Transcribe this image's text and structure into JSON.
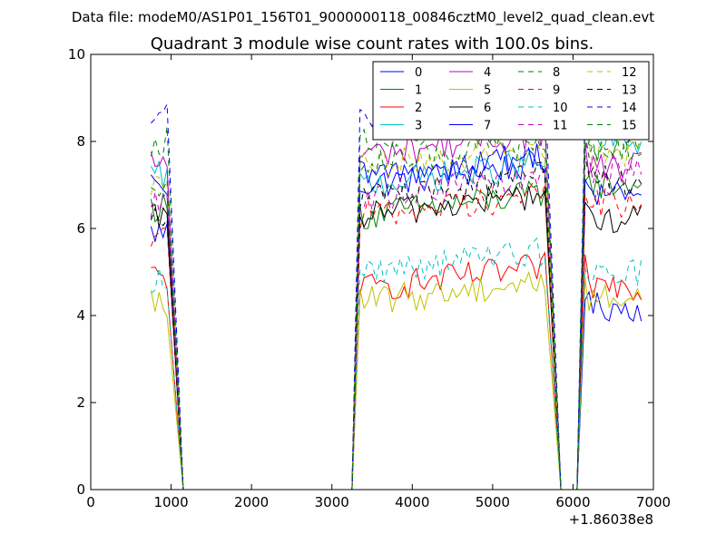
{
  "figure": {
    "suptitle": "Data file: modeM0/AS1P01_156T01_9000000118_00846cztM0_level2_quad_clean.evt"
  },
  "chart_data": {
    "type": "line",
    "title": "Quadrant 3 module wise count rates with 100.0s bins.",
    "xlabel": "",
    "ylabel": "",
    "x_offset_label": "+1.86038e8",
    "xlim": [
      0,
      7000
    ],
    "ylim": [
      0,
      10
    ],
    "xticks": [
      0,
      1000,
      2000,
      3000,
      4000,
      5000,
      6000,
      7000
    ],
    "yticks": [
      0,
      2,
      4,
      6,
      8,
      10
    ],
    "xtick_labels": [
      "0",
      "1000",
      "2000",
      "3000",
      "4000",
      "5000",
      "6000",
      "7000"
    ],
    "ytick_labels": [
      "0",
      "2",
      "4",
      "6",
      "8",
      "10"
    ],
    "grid": false,
    "legend_position": "top-right",
    "legend_columns": 4,
    "segments": [
      {
        "start": 750,
        "end": 950
      },
      {
        "start": 3350,
        "end": 5650
      },
      {
        "start": 6150,
        "end": 6850
      }
    ],
    "zero_ranges": [
      [
        1150,
        3250
      ],
      [
        5850,
        6050
      ]
    ],
    "series": [
      {
        "name": "0",
        "color": "#0000ff",
        "dash": "solid",
        "levels": [
          5.9,
          7.0,
          4.2
        ]
      },
      {
        "name": "1",
        "color": "#008000",
        "dash": "solid",
        "levels": [
          6.5,
          6.3,
          7.0
        ]
      },
      {
        "name": "2",
        "color": "#ff0000",
        "dash": "solid",
        "levels": [
          4.9,
          4.6,
          4.7
        ]
      },
      {
        "name": "3",
        "color": "#00bfbf",
        "dash": "solid",
        "levels": [
          7.2,
          7.0,
          8.0
        ]
      },
      {
        "name": "4",
        "color": "#bf00bf",
        "dash": "solid",
        "levels": [
          7.5,
          7.7,
          7.4
        ]
      },
      {
        "name": "5",
        "color": "#bfbf00",
        "dash": "solid",
        "levels": [
          4.3,
          4.3,
          4.4
        ]
      },
      {
        "name": "6",
        "color": "#000000",
        "dash": "solid",
        "levels": [
          6.2,
          6.3,
          6.2
        ]
      },
      {
        "name": "7",
        "color": "#0000ff",
        "dash": "solid",
        "levels": [
          6.9,
          7.2,
          6.8
        ]
      },
      {
        "name": "8",
        "color": "#008000",
        "dash": "dashed",
        "levels": [
          8.0,
          8.1,
          7.9
        ]
      },
      {
        "name": "9",
        "color": "#ff0000",
        "dash": "dashed",
        "levels": [
          5.9,
          6.3,
          6.6
        ]
      },
      {
        "name": "10",
        "color": "#00bfbf",
        "dash": "dashed",
        "levels": [
          4.8,
          5.0,
          5.0
        ]
      },
      {
        "name": "11",
        "color": "#bf00bf",
        "dash": "dashed",
        "levels": [
          6.5,
          6.7,
          7.3
        ]
      },
      {
        "name": "12",
        "color": "#bfbf00",
        "dash": "dashed",
        "levels": [
          7.0,
          7.4,
          7.7
        ]
      },
      {
        "name": "13",
        "color": "#000000",
        "dash": "dashed",
        "levels": [
          6.4,
          6.7,
          7.1
        ]
      },
      {
        "name": "14",
        "color": "#0000ff",
        "dash": "dashed",
        "levels": [
          8.6,
          8.6,
          8.3
        ]
      },
      {
        "name": "15",
        "color": "#008000",
        "dash": "dashed",
        "levels": [
          7.1,
          7.5,
          7.8
        ]
      }
    ]
  }
}
